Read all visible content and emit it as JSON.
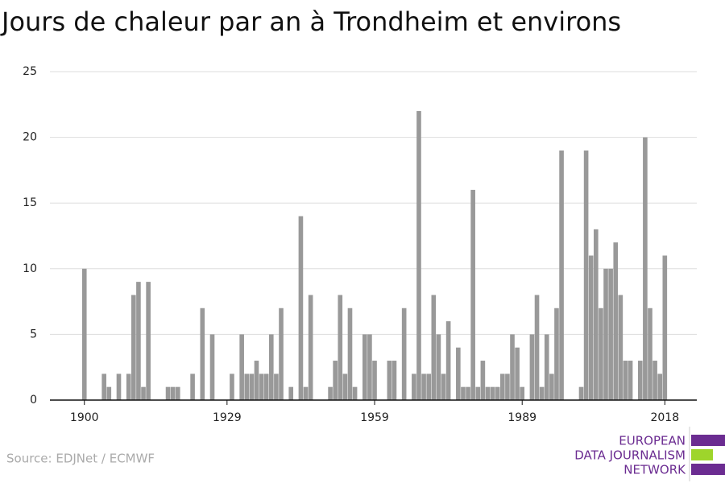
{
  "chart_data": {
    "type": "bar",
    "title": "Jours de chaleur par an à Trondheim et environs",
    "source": "Source: EDJNet / ECMWF",
    "logo": [
      "EUROPEAN",
      "DATA JOURNALISM",
      "NETWORK"
    ],
    "color": "#999999",
    "x": [
      1900,
      1904,
      1905,
      1907,
      1909,
      1910,
      1911,
      1912,
      1913,
      1917,
      1918,
      1919,
      1922,
      1924,
      1926,
      1930,
      1932,
      1933,
      1934,
      1935,
      1936,
      1937,
      1938,
      1939,
      1940,
      1942,
      1944,
      1945,
      1946,
      1950,
      1951,
      1952,
      1953,
      1954,
      1955,
      1957,
      1958,
      1959,
      1962,
      1963,
      1965,
      1967,
      1968,
      1969,
      1970,
      1971,
      1972,
      1973,
      1974,
      1976,
      1977,
      1978,
      1979,
      1980,
      1981,
      1982,
      1983,
      1984,
      1985,
      1986,
      1987,
      1988,
      1989,
      1991,
      1992,
      1993,
      1994,
      1995,
      1996,
      1997,
      2001,
      2002,
      2003,
      2004,
      2005,
      2006,
      2007,
      2008,
      2009,
      2010,
      2011,
      2013,
      2014,
      2015,
      2016,
      2017,
      2018
    ],
    "values": [
      10,
      2,
      1,
      2,
      2,
      8,
      9,
      1,
      9,
      1,
      1,
      1,
      2,
      7,
      5,
      2,
      5,
      2,
      2,
      3,
      2,
      2,
      5,
      2,
      7,
      1,
      14,
      1,
      8,
      1,
      3,
      8,
      2,
      7,
      1,
      5,
      5,
      3,
      3,
      3,
      7,
      2,
      22,
      2,
      2,
      8,
      5,
      2,
      6,
      4,
      1,
      1,
      16,
      1,
      3,
      1,
      1,
      1,
      2,
      2,
      5,
      4,
      1,
      5,
      8,
      1,
      5,
      2,
      7,
      19,
      1,
      19,
      11,
      13,
      7,
      10,
      10,
      12,
      8,
      3,
      3,
      3,
      20,
      7,
      3,
      2,
      11
    ],
    "xlim": [
      1893,
      2024.5
    ],
    "xticks": [
      1900,
      1929,
      1959,
      1989,
      2018
    ],
    "ylim": [
      0,
      25
    ],
    "yticks": [
      0,
      5,
      10,
      15,
      20,
      25
    ],
    "grid": true
  }
}
